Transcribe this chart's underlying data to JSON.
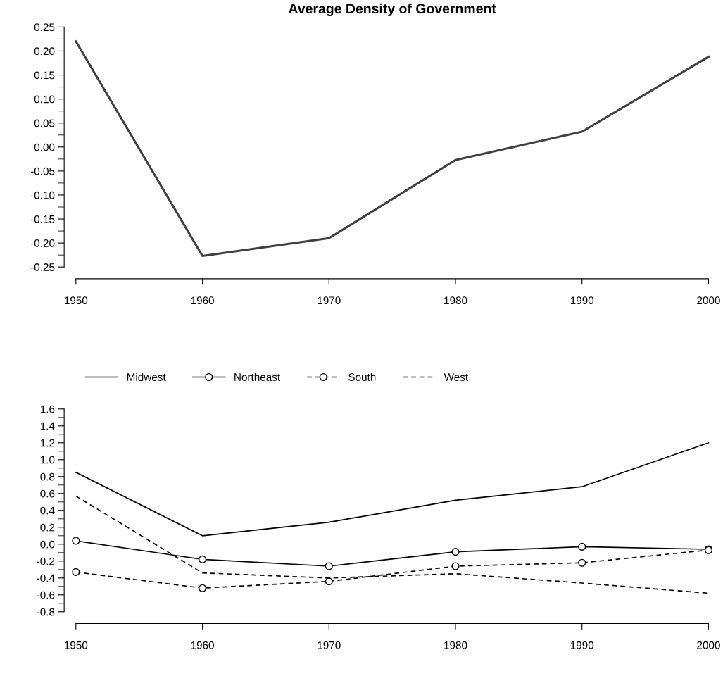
{
  "chart_data": [
    {
      "type": "line",
      "title": "Average Density of Government",
      "x": [
        1950,
        1960,
        1970,
        1980,
        1990,
        2000
      ],
      "grid": false,
      "legend": false,
      "series": [
        {
          "color": "#404040",
          "values": [
            0.22,
            -0.227,
            -0.19,
            -0.027,
            0.032,
            0.188
          ]
        }
      ],
      "xlim": [
        1950,
        2000
      ],
      "xticks": [
        1950,
        1960,
        1970,
        1980,
        1990,
        2000
      ],
      "ylim": [
        -0.25,
        0.25
      ],
      "yticks": [
        {
          "value": 0.25,
          "label": "0.25"
        },
        {
          "value": 0.2,
          "label": "0.20"
        },
        {
          "value": 0.15,
          "label": "0.15"
        },
        {
          "value": 0.1,
          "label": "0.10"
        },
        {
          "value": 0.05,
          "label": "0.05"
        },
        {
          "value": 0,
          "label": "0.00"
        },
        {
          "value": -0.05,
          "label": "-0.05"
        },
        {
          "value": -0.1,
          "label": "-0.10"
        },
        {
          "value": -0.15,
          "label": "-0.15"
        },
        {
          "value": -0.2,
          "label": "-0.20"
        },
        {
          "value": -0.25,
          "label": "-0.25"
        }
      ]
    },
    {
      "type": "line",
      "x": [
        1950,
        1960,
        1970,
        1980,
        1990,
        2000
      ],
      "grid": false,
      "legend": "top",
      "series": [
        {
          "name": "Midwest",
          "color": "#000000",
          "line_style": "solid",
          "marker": "none",
          "values": [
            0.85,
            0.1,
            0.26,
            0.52,
            0.68,
            1.2
          ]
        },
        {
          "name": "Northeast",
          "color": "#000000",
          "line_style": "solid",
          "marker": "circle",
          "values": [
            0.04,
            -0.18,
            -0.26,
            -0.09,
            -0.03,
            -0.06
          ]
        },
        {
          "name": "South",
          "color": "#000000",
          "line_style": "dashed",
          "marker": "circle",
          "values": [
            -0.33,
            -0.52,
            -0.44,
            -0.26,
            -0.22,
            -0.07
          ]
        },
        {
          "name": "West",
          "color": "#000000",
          "line_style": "dashed",
          "marker": "none",
          "values": [
            0.57,
            -0.34,
            -0.4,
            -0.35,
            -0.46,
            -0.58
          ]
        }
      ],
      "xlim": [
        1950,
        2000
      ],
      "xticks": [
        1950,
        1960,
        1970,
        1980,
        1990,
        2000
      ],
      "ylim": [
        -0.8,
        1.6
      ],
      "yticks": [
        1.6,
        1.4,
        1.2,
        {
          "value": 1.0,
          "label": "1.0"
        },
        0.8,
        0.6,
        0.4,
        0.2,
        {
          "value": 0,
          "label": "0.0"
        },
        -0.2,
        -0.4,
        -0.6,
        -0.8
      ]
    }
  ]
}
